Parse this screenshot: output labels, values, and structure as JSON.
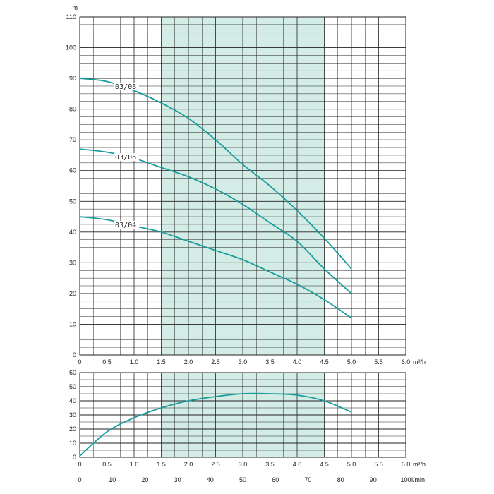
{
  "colors": {
    "curve": "#1a9c9c",
    "band": "#d3ece6",
    "grid": "#222222"
  },
  "chart_data": [
    {
      "type": "line",
      "title": "",
      "xlabel": "m³/h",
      "ylabel": "m",
      "xlim": [
        0,
        6
      ],
      "ylim": [
        0,
        110
      ],
      "x_ticks": [
        "0",
        "0.5",
        "1.0",
        "1.5",
        "2.0",
        "2.5",
        "3.0",
        "3.5",
        "4.0",
        "4.5",
        "5.0",
        "5.5",
        "6.0"
      ],
      "y_ticks": [
        "0",
        "10",
        "20",
        "30",
        "40",
        "50",
        "60",
        "70",
        "80",
        "90",
        "100",
        "110"
      ],
      "highlight_x_range": [
        1.5,
        4.5
      ],
      "grid": true,
      "series": [
        {
          "name": "03/08",
          "x": [
            0,
            0.5,
            1.0,
            1.5,
            2.0,
            2.5,
            3.0,
            3.5,
            4.0,
            4.5,
            5.0
          ],
          "y": [
            90,
            89,
            86,
            82,
            77,
            70,
            62,
            55,
            47,
            38,
            28
          ]
        },
        {
          "name": "03/06",
          "x": [
            0,
            0.5,
            1.0,
            1.5,
            2.0,
            2.5,
            3.0,
            3.5,
            4.0,
            4.5,
            5.0
          ],
          "y": [
            67,
            66,
            64,
            61,
            58,
            54,
            49,
            43,
            37,
            28,
            20
          ]
        },
        {
          "name": "03/04",
          "x": [
            0,
            0.5,
            1.0,
            1.5,
            2.0,
            2.5,
            3.0,
            3.5,
            4.0,
            4.5,
            5.0
          ],
          "y": [
            45,
            44,
            42,
            40,
            37,
            34,
            31,
            27,
            23,
            18,
            12
          ]
        }
      ]
    },
    {
      "type": "line",
      "title": "",
      "xlabel": "m³/h",
      "x2label": "l/min",
      "ylabel": "",
      "xlim": [
        0,
        6
      ],
      "ylim": [
        0,
        60
      ],
      "x_ticks": [
        "0",
        "0.5",
        "1.0",
        "1.5",
        "2.0",
        "2.5",
        "3.0",
        "3.5",
        "4.0",
        "4.5",
        "5.0",
        "5.5",
        "6.0"
      ],
      "x2_ticks": [
        "0",
        "10",
        "20",
        "30",
        "40",
        "50",
        "60",
        "70",
        "80",
        "90",
        "100"
      ],
      "y_ticks": [
        "0",
        "10",
        "20",
        "30",
        "40",
        "50",
        "60"
      ],
      "highlight_x_range": [
        1.5,
        4.5
      ],
      "grid": true,
      "series": [
        {
          "x": [
            0,
            0.5,
            1.0,
            1.5,
            2.0,
            2.5,
            3.0,
            3.5,
            4.0,
            4.5,
            5.0
          ],
          "y": [
            1,
            18,
            28,
            35,
            40,
            43,
            45,
            45,
            44,
            40,
            32
          ]
        }
      ]
    }
  ]
}
